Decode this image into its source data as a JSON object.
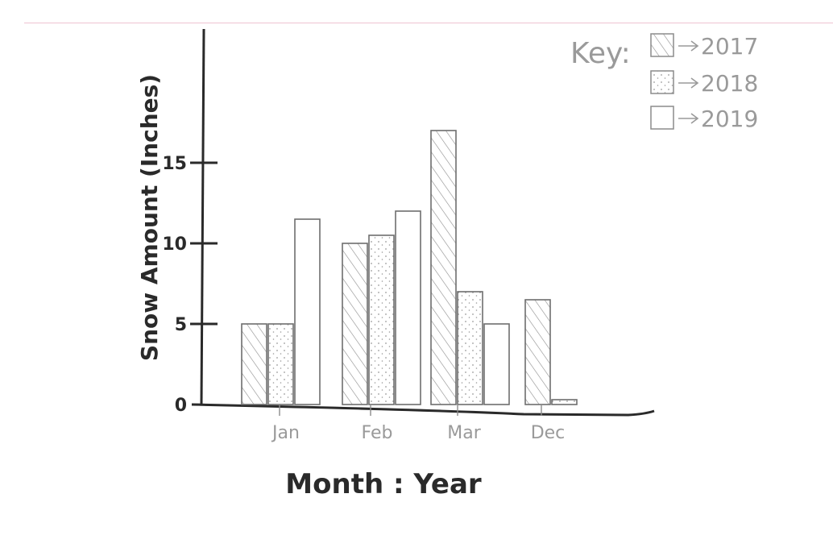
{
  "chart_data": {
    "type": "bar",
    "categories": [
      "Jan",
      "Feb",
      "Mar",
      "Dec"
    ],
    "series": [
      {
        "name": "2017",
        "values": [
          5,
          10,
          17,
          6.5
        ],
        "fill": "hatch"
      },
      {
        "name": "2018",
        "values": [
          5,
          10.5,
          7,
          0.3
        ],
        "fill": "dots"
      },
      {
        "name": "2019",
        "values": [
          11.5,
          12,
          5,
          null
        ],
        "fill": "blank"
      }
    ],
    "xlabel": "Month : Year",
    "ylabel": "Snow Amount (Inches)",
    "yticks": [
      "0",
      "5",
      "10",
      "15"
    ],
    "ylim": [
      0,
      20
    ],
    "legend": {
      "title": "Key:",
      "position": "top-right"
    },
    "grid": false
  },
  "colors": {
    "ink": "#2a2a2a",
    "pencil": "#8c8c8c",
    "page_rule": "#efc3d2",
    "background": "#ffffff"
  }
}
